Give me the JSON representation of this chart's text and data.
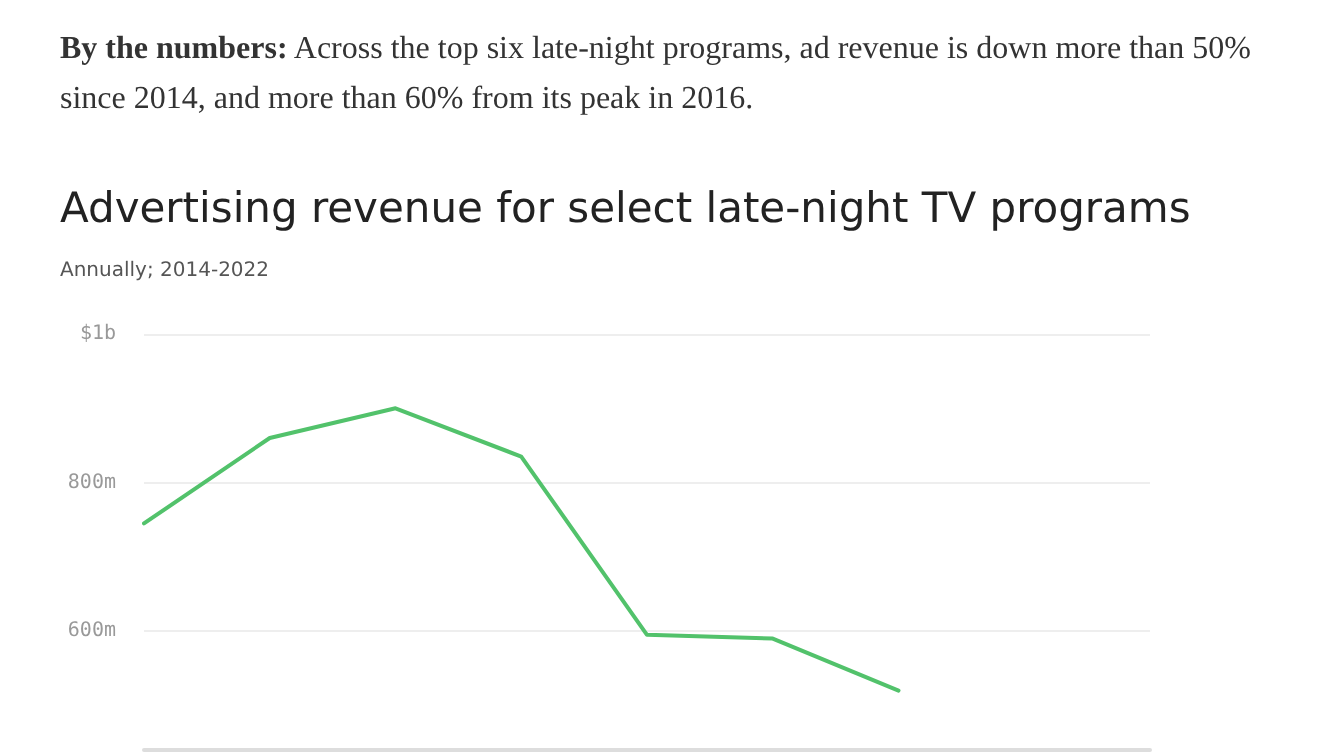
{
  "chart_data": {
    "type": "line",
    "title": "Advertising revenue for select late-night TV programs",
    "subtitle": "Annually; 2014-2022",
    "annotations": [
      "By the numbers: Across the top six late-night programs, ad revenue is down more than 50% since 2014, and more than 60% from its peak in 2016."
    ],
    "categories": [
      null,
      null,
      null,
      null,
      null,
      null,
      null,
      null,
      null
    ],
    "series": [
      {
        "color": "#52c26b",
        "values": [
          745000000,
          860000000,
          900000000,
          835000000,
          595000000,
          590000000,
          520000000,
          null,
          null
        ]
      }
    ],
    "ylim": [
      440000000,
      1000000000
    ],
    "yticks": [
      {
        "value": 600000000,
        "label": "600m"
      },
      {
        "value": 800000000,
        "label": "800m"
      },
      {
        "value": 1000000000,
        "label": "$1b"
      }
    ],
    "grid": "y",
    "tick_labels": "y",
    "marker": "none",
    "line_style": "solid"
  }
}
